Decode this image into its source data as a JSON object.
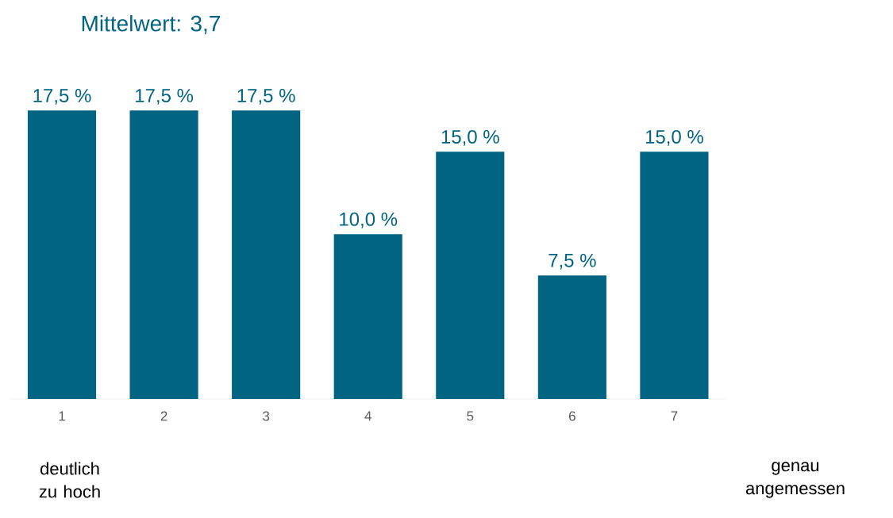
{
  "chart_data": {
    "type": "bar",
    "title": "Mittelwert: 3,7",
    "categories": [
      "1",
      "2",
      "3",
      "4",
      "5",
      "6",
      "7"
    ],
    "values": [
      17.5,
      17.5,
      17.5,
      10.0,
      15.0,
      7.5,
      15.0
    ],
    "value_labels": [
      "17,5 %",
      "17,5 %",
      "17,5 %",
      "10,0 %",
      "15,0 %",
      "7,5 %",
      "15,0 %"
    ],
    "color": "#006482",
    "annotations": [
      "deutlich zu hoch",
      "genau angemessen"
    ]
  }
}
